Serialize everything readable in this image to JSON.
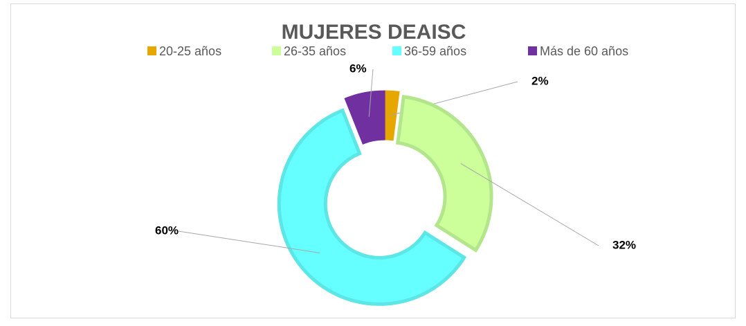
{
  "chart_data": {
    "type": "donut",
    "title": "MUJERES DEAISC",
    "categories": [
      "20-25 años",
      "26-35 años",
      "36-59 años",
      "Más de 60 años"
    ],
    "values": [
      2,
      32,
      60,
      6
    ],
    "value_labels": [
      "2%",
      "32%",
      "60%",
      "6%"
    ],
    "colors": [
      "#e6a800",
      "#ccff99",
      "#66ffff",
      "#7030a0"
    ],
    "legend": "top"
  }
}
